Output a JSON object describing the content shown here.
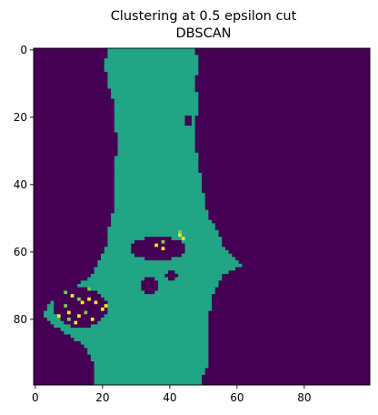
{
  "chart_data": {
    "type": "heatmap",
    "title": "Clustering at 0.5 epsilon cut",
    "subtitle": "DBSCAN",
    "xlabel": "",
    "ylabel": "",
    "xlim": [
      -0.5,
      99.5
    ],
    "ylim": [
      99.5,
      -0.5
    ],
    "grid": false,
    "x_ticks": [
      0,
      20,
      40,
      60,
      80
    ],
    "y_ticks": [
      0,
      20,
      40,
      60,
      80
    ],
    "x_tick_labels": [
      "0",
      "20",
      "40",
      "60",
      "80"
    ],
    "y_tick_labels": [
      "0",
      "20",
      "40",
      "60",
      "80"
    ],
    "grid_size": [
      100,
      100
    ],
    "colormap": "viridis",
    "palette": {
      "background_cluster": "#440154",
      "main_cluster": "#21a585",
      "minor_cluster_a": "#7ad151",
      "minor_cluster_b": "#fde725"
    },
    "main_cluster_extent_by_row": [
      [
        0,
        22,
        47
      ],
      [
        4,
        21,
        48
      ],
      [
        10,
        22,
        47
      ],
      [
        16,
        24,
        48
      ],
      [
        22,
        24,
        47
      ],
      [
        28,
        25,
        47
      ],
      [
        34,
        24,
        48
      ],
      [
        40,
        24,
        49
      ],
      [
        46,
        24,
        50
      ],
      [
        50,
        23,
        51
      ],
      [
        54,
        22,
        54
      ],
      [
        58,
        22,
        55
      ],
      [
        61,
        20,
        58
      ],
      [
        64,
        19,
        61
      ],
      [
        67,
        17,
        55
      ],
      [
        70,
        13,
        54
      ],
      [
        73,
        8,
        52
      ],
      [
        76,
        4,
        52
      ],
      [
        79,
        3,
        51
      ],
      [
        82,
        6,
        51
      ],
      [
        85,
        11,
        51
      ],
      [
        88,
        15,
        51
      ],
      [
        91,
        17,
        51
      ],
      [
        94,
        18,
        51
      ],
      [
        97,
        18,
        49
      ],
      [
        99,
        18,
        49
      ]
    ],
    "background_holes": [
      {
        "rows": [
          56,
          62
        ],
        "cols": [
          29,
          44
        ]
      },
      {
        "rows": [
          71,
          82
        ],
        "cols": [
          6,
          21
        ]
      },
      {
        "rows": [
          66,
          68
        ],
        "cols": [
          39,
          42
        ]
      },
      {
        "rows": [
          68,
          72
        ],
        "cols": [
          32,
          36
        ]
      },
      {
        "rows": [
          20,
          22
        ],
        "cols": [
          45,
          46
        ]
      }
    ],
    "minor_cluster_points": [
      {
        "cluster": "minor_cluster_b",
        "cells": [
          [
            55,
            43
          ],
          [
            56,
            44
          ],
          [
            58,
            36
          ],
          [
            59,
            38
          ],
          [
            73,
            11
          ],
          [
            75,
            14
          ],
          [
            75,
            18
          ],
          [
            76,
            21
          ],
          [
            78,
            10
          ],
          [
            79,
            7
          ],
          [
            79,
            13
          ],
          [
            80,
            17
          ],
          [
            81,
            12
          ],
          [
            77,
            20
          ],
          [
            74,
            16
          ]
        ]
      },
      {
        "cluster": "minor_cluster_a",
        "cells": [
          [
            54,
            43
          ],
          [
            57,
            38
          ],
          [
            72,
            9
          ],
          [
            74,
            13
          ],
          [
            76,
            9
          ],
          [
            78,
            15
          ],
          [
            80,
            10
          ],
          [
            71,
            16
          ]
        ]
      }
    ]
  }
}
